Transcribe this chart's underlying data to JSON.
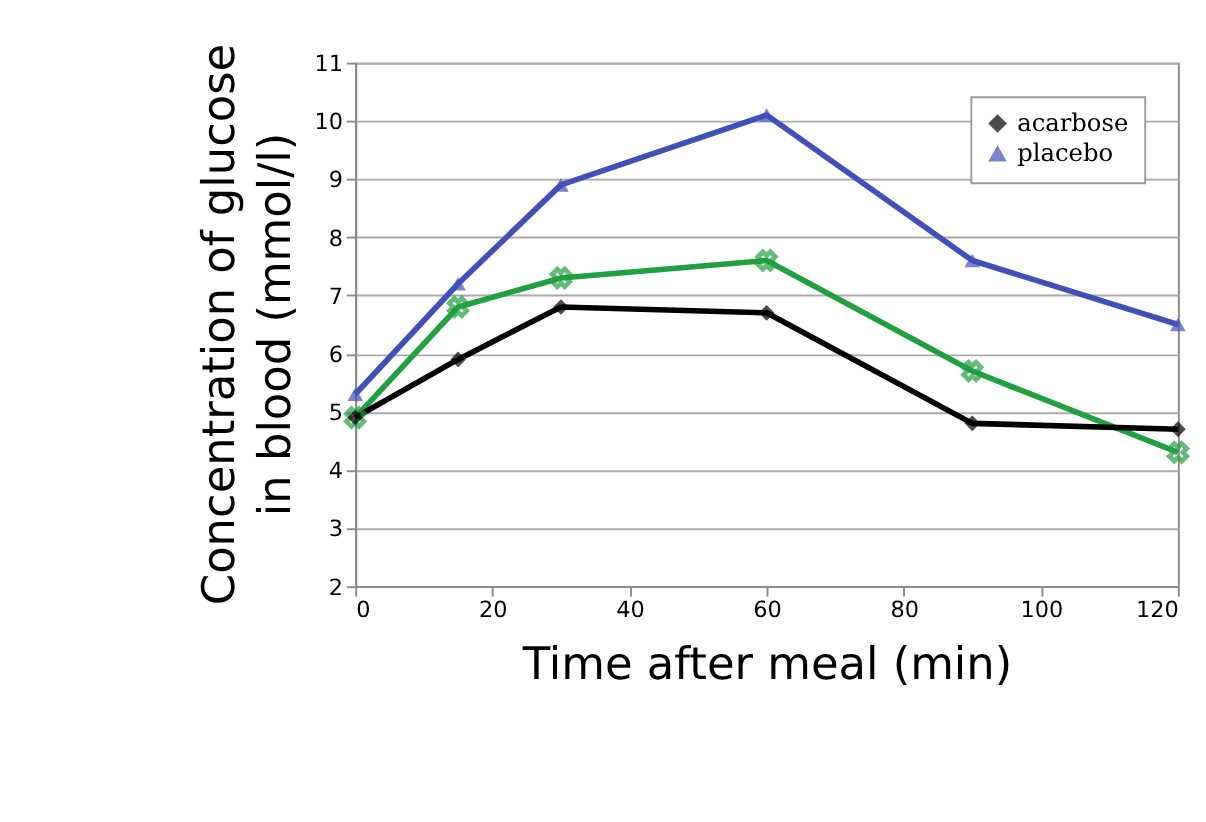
{
  "chart_data": {
    "type": "line",
    "xlabel": "Time after meal (min)",
    "ylabel": "Concentration of glucose in blood (mmol/l)",
    "x": [
      0,
      15,
      30,
      60,
      90,
      120
    ],
    "series": [
      {
        "name": "acarbose",
        "color": "#000000",
        "marker": "diamond",
        "values": [
          4.9,
          5.9,
          6.8,
          6.7,
          4.8,
          4.7
        ]
      },
      {
        "name": "placebo",
        "color": "#4050b8",
        "marker": "triangle",
        "values": [
          5.3,
          7.2,
          8.9,
          10.1,
          7.6,
          6.5
        ]
      },
      {
        "color": "#20a040",
        "marker": "cross",
        "values": [
          4.9,
          6.8,
          7.3,
          7.6,
          5.7,
          4.3
        ]
      }
    ],
    "xlim": [
      0,
      120
    ],
    "xticks": [
      0,
      20,
      40,
      60,
      80,
      100,
      120
    ],
    "ylim": [
      2,
      11
    ],
    "yticks": [
      2,
      3,
      4,
      5,
      6,
      7,
      8,
      9,
      10,
      11
    ],
    "grid": "y",
    "legend": "top right",
    "line_style": "solid"
  }
}
